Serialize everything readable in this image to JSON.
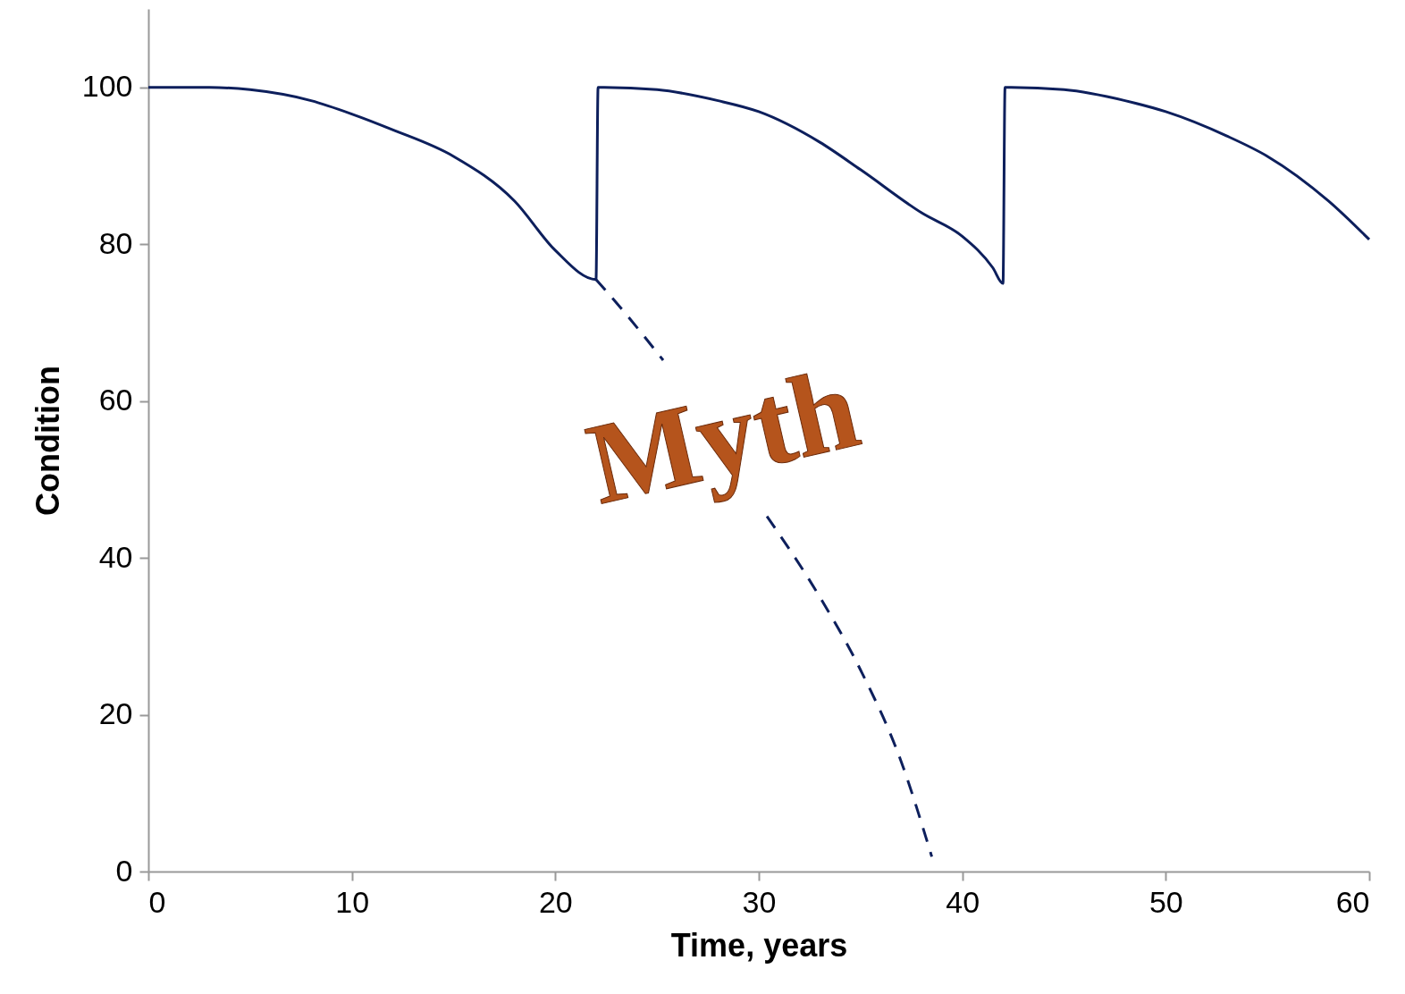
{
  "chart_data": {
    "type": "line",
    "xlabel": "Time, years",
    "ylabel": "Condition",
    "xlim": [
      0,
      60
    ],
    "xticks": [
      0,
      10,
      20,
      30,
      40,
      50,
      60
    ],
    "ylim": [
      0,
      110
    ],
    "yticks": [
      0,
      20,
      40,
      60,
      80,
      100
    ],
    "grid": false,
    "marker": "none",
    "series": [
      {
        "color": "#0d1f5c",
        "line_style": "solid",
        "x": [
          0,
          3,
          5,
          8,
          10,
          12,
          15,
          18,
          20,
          22,
          22.1,
          22.4,
          25,
          28,
          30,
          33,
          35,
          38,
          40,
          41.5,
          42,
          42.1,
          42.4,
          45,
          48,
          50,
          53,
          55,
          58,
          60
        ],
        "values": [
          100,
          100,
          99.7,
          98.3,
          96.6,
          94.6,
          91.2,
          85.5,
          79.2,
          75.5,
          100,
          100,
          99.7,
          98.3,
          96.9,
          93,
          89.5,
          84,
          81,
          77,
          75,
          100,
          100,
          99.7,
          98.3,
          96.9,
          93.8,
          91.2,
          85.5,
          80.6
        ]
      },
      {
        "color": "#0d1f5c",
        "line_style": "dashed",
        "x": [
          22,
          23.5,
          25.3,
          28,
          30.4,
          33,
          35,
          37,
          38.5
        ],
        "values": [
          75.5,
          71,
          65.2,
          null,
          45.3,
          35,
          25.7,
          14,
          1.9
        ]
      }
    ],
    "annotations": [
      "Myth"
    ]
  }
}
